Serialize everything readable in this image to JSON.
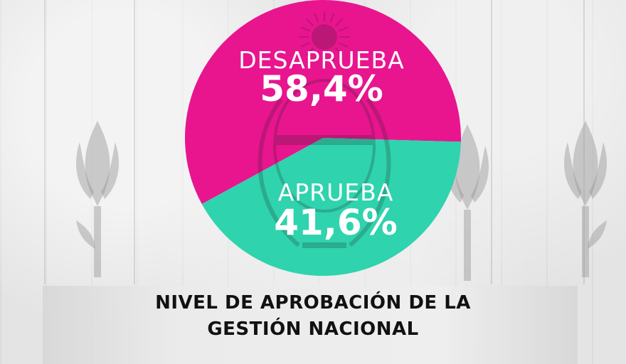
{
  "chart_data": {
    "type": "pie",
    "title": "NIVEL DE APROBACIÓN DE LA GESTIÓN NACIONAL",
    "title_lines": [
      "NIVEL DE APROBACIÓN DE LA",
      "GESTIÓN NACIONAL"
    ],
    "slices": [
      {
        "label": "DESAPRUEBA",
        "value": 58.4,
        "value_label": "58,4%",
        "color": "#e8158f"
      },
      {
        "label": "APRUEBA",
        "value": 41.6,
        "value_label": "41,6%",
        "color": "#2fd3ad"
      }
    ],
    "legend": "none"
  },
  "colors": {
    "background": "#e9e9e9",
    "title_text": "#111111",
    "slice_label_text": "#ffffff"
  },
  "decorations": [
    "coat-of-arms-watermark",
    "laurel-branch-icon",
    "sun-icon",
    "torch-flame-icon"
  ]
}
